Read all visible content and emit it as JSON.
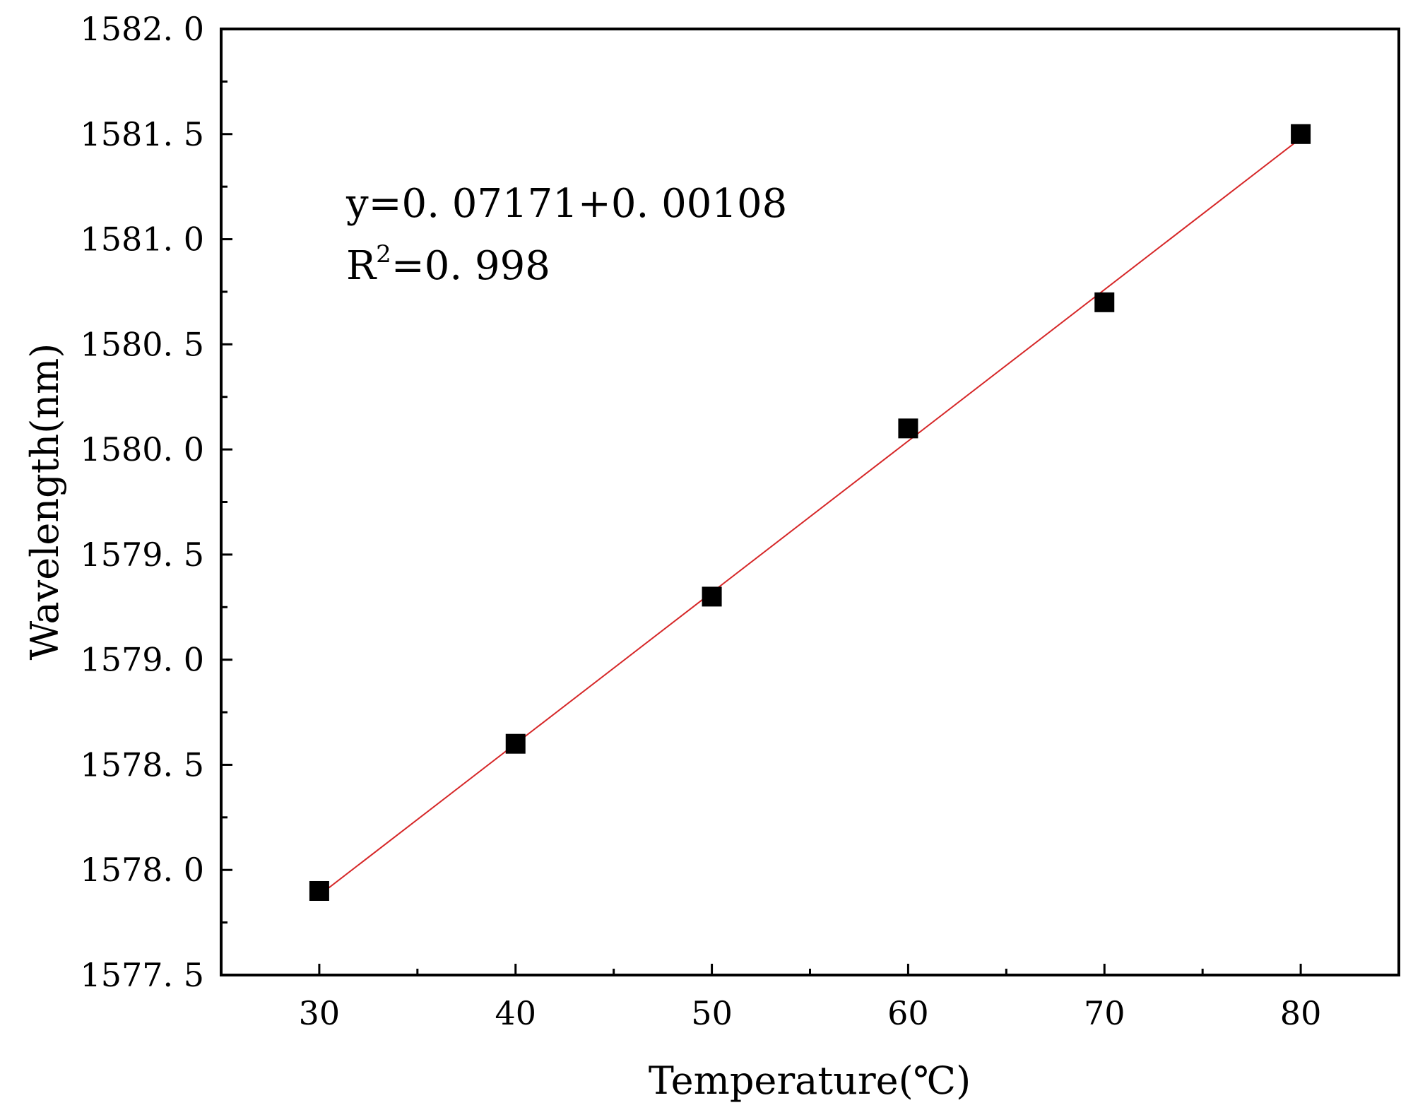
{
  "chart_data": {
    "type": "scatter",
    "xlabel": "Temperature(℃)",
    "ylabel": "Wavelength(nm)",
    "xlim": [
      25,
      85
    ],
    "ylim": [
      1577.5,
      1582.0
    ],
    "x_ticks": [
      30,
      40,
      50,
      60,
      70,
      80
    ],
    "x_tick_labels": [
      "30",
      "40",
      "50",
      "60",
      "70",
      "80"
    ],
    "y_ticks": [
      1577.5,
      1578.0,
      1578.5,
      1579.0,
      1579.5,
      1580.0,
      1580.5,
      1581.0,
      1581.5,
      1582.0
    ],
    "y_tick_labels": [
      "1577. 5",
      "1578. 0",
      "1578. 5",
      "1579. 0",
      "1579. 5",
      "1580. 0",
      "1580. 5",
      "1581. 0",
      "1581. 5",
      "1582. 0"
    ],
    "grid": false,
    "series": [
      {
        "marker": "square",
        "color": "#000000",
        "x": [
          30,
          40,
          50,
          60,
          70,
          80
        ],
        "y": [
          1577.9,
          1578.6,
          1579.3,
          1580.1,
          1580.7,
          1581.5
        ]
      }
    ],
    "fit_line": {
      "color": "#d62728",
      "x": [
        30,
        80
      ],
      "y": [
        1577.88,
        1581.48
      ]
    },
    "annotations": {
      "equation": "y=0. 07171+0. 00108",
      "r2_prefix": "R",
      "r2_sup": "2",
      "r2_value": "=0. 998"
    }
  }
}
